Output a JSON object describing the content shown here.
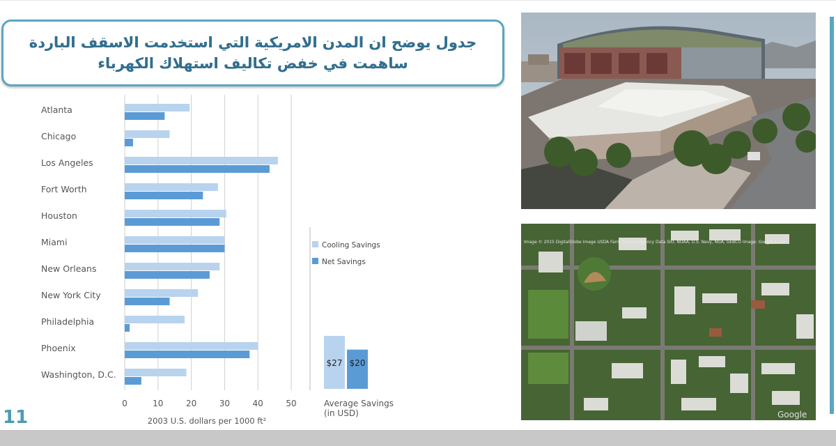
{
  "slide": {
    "title": "جدول يوضح ان المدن  الامريكية  التي استخدمت الاسقف الباردة ساهمت في خفض تكاليف استهلاك الكهرباء",
    "page_number": "11",
    "accent_color": "#5aa6c2"
  },
  "chart_data": [
    {
      "type": "bar",
      "orientation": "horizontal",
      "categories": [
        "Atlanta",
        "Chicago",
        "Los Angeles",
        "Fort Worth",
        "Houston",
        "Miami",
        "New Orleans",
        "New York City",
        "Philadelphia",
        "Phoenix",
        "Washington, D.C."
      ],
      "series": [
        {
          "name": "Cooling Savings",
          "color": "#b8d3ee",
          "values": [
            19.5,
            13.5,
            46,
            28,
            30.5,
            30,
            28.5,
            22,
            18,
            40,
            18.5
          ]
        },
        {
          "name": "Net Savings",
          "color": "#5b9bd5",
          "values": [
            12,
            2.5,
            43.5,
            23.5,
            28.5,
            30,
            25.5,
            13.5,
            1.5,
            37.5,
            5
          ]
        }
      ],
      "x_ticks": [
        0,
        10,
        20,
        30,
        40,
        50
      ],
      "xlim": [
        0,
        50
      ],
      "xlabel": "2003 U.S. dollars per 1000 ft²",
      "grid": true,
      "legend_position": "right"
    },
    {
      "type": "bar",
      "categories": [
        "Cooling Savings",
        "Net Savings"
      ],
      "values": [
        27,
        20
      ],
      "value_labels": [
        "$27",
        "$20"
      ],
      "colors": [
        "#b8d3ee",
        "#5b9bd5"
      ],
      "xlabel": "Average Savings\n(in USD)"
    }
  ],
  "images": {
    "stadium_photo": "stadium-with-cool-roofs-photo",
    "aerial_photo": "aerial-satellite-view-photo",
    "aerial_watermark": "Image © 2015 DigitalGlobe  Image USDA Farm Service Agency  Data SIO, NOAA, U.S. Navy, NGA, GEBCO  Image: Google Earth",
    "aerial_logo": "Google"
  }
}
